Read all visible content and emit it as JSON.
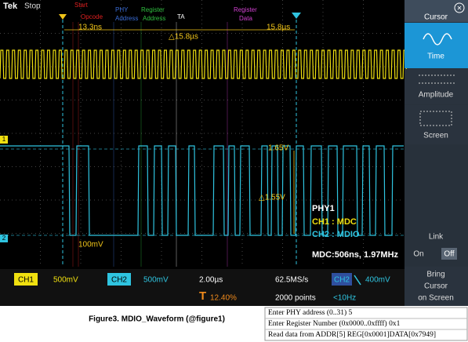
{
  "header": {
    "brand": "Tek",
    "status": "Stop"
  },
  "annotations": {
    "start": "Start",
    "opcode": "Opcode",
    "phy": [
      "PHY",
      "Address"
    ],
    "register_address": [
      "Register",
      "Address"
    ],
    "ta": "TA",
    "register_data": [
      "Register",
      "Data"
    ]
  },
  "cursor_readouts": {
    "left": "13.3ns",
    "right": "15.8µs",
    "delta_t": "△15.8µs",
    "level": "1.65V",
    "delta_v": "△1.55V",
    "ch2_level": "100mV"
  },
  "markers": {
    "ch1": "1",
    "ch2": "2"
  },
  "legend": {
    "title": "PHY1",
    "ch1": "CH1 : MDC",
    "ch2": "CH2 : MDIO",
    "measure": "MDC:506ns, 1.97MHz"
  },
  "side_panel": {
    "title": "Cursor",
    "items": [
      "Time",
      "Amplitude",
      "Screen"
    ],
    "link": "Link",
    "on": "On",
    "off": "Off",
    "bring": [
      "Bring",
      "Cursor",
      "on Screen"
    ]
  },
  "status_bar": {
    "ch1": "CH1",
    "ch1_scale": "500mV",
    "ch2": "CH2",
    "ch2_scale": "500mV",
    "timebase": "2.00µs",
    "trigger_symbol": "T",
    "trigger_pos": "12.40%",
    "sample_rate": "62.5MS/s",
    "record": "2000 points",
    "trigger_source": "CH2",
    "trigger_level": "400mV",
    "trigger_freq": "<10Hz"
  },
  "caption": "Figure3. MDIO_Waveform (@figure1)",
  "terminal": [
    "Enter PHY address (0..31) 5",
    "Enter Register Number (0x0000..0xffff) 0x1",
    "Read data from ADDR[5] REG[0x0001]DATA[0x7949]"
  ]
}
